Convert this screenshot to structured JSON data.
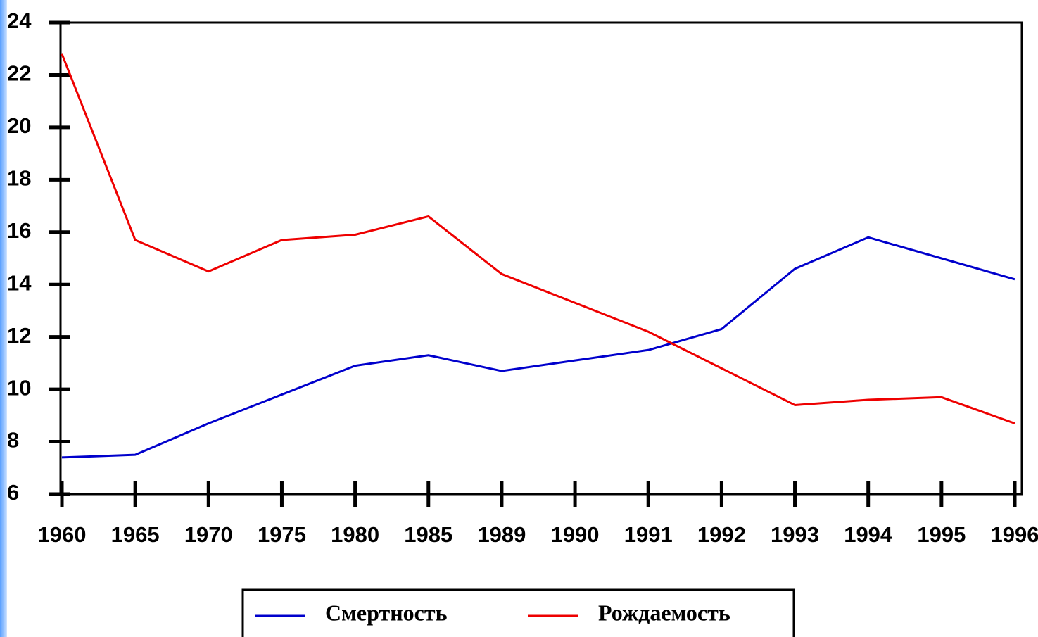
{
  "chart_data": {
    "type": "line",
    "categories": [
      "1960",
      "1965",
      "1970",
      "1975",
      "1980",
      "1985",
      "1989",
      "1990",
      "1991",
      "1992",
      "1993",
      "1994",
      "1995",
      "1996"
    ],
    "series": [
      {
        "name": "Смертность",
        "color": "#0000cc",
        "values": [
          7.4,
          7.5,
          8.7,
          9.8,
          10.9,
          11.3,
          10.7,
          11.1,
          11.5,
          12.3,
          14.6,
          15.8,
          15.0,
          14.2
        ]
      },
      {
        "name": "Рождаемость",
        "color": "#ee0000",
        "values": [
          22.8,
          15.7,
          14.5,
          15.7,
          15.9,
          16.6,
          14.4,
          13.3,
          12.2,
          10.8,
          9.4,
          9.6,
          9.7,
          8.7
        ]
      }
    ],
    "ylim": [
      6,
      24
    ],
    "yticks": [
      6,
      8,
      10,
      12,
      14,
      16,
      18,
      20,
      22,
      24
    ],
    "legend": "bottom"
  }
}
